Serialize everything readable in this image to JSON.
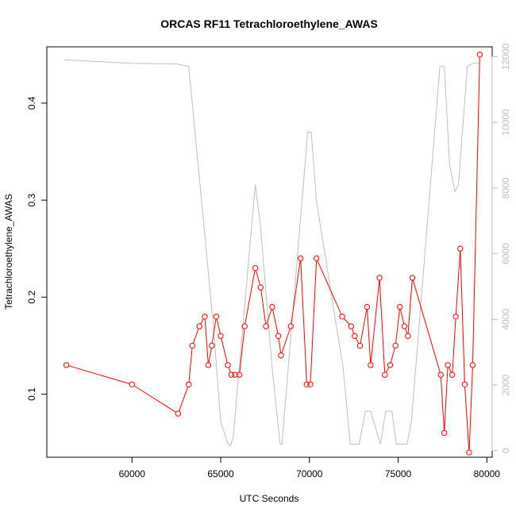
{
  "chart_data": {
    "type": "line",
    "title": "ORCAS RF11 Tetrachloroethylene_AWAS",
    "xlabel": "UTC Seconds",
    "ylabel": "Tetrachloroethylene_AWAS",
    "xlim": [
      55200,
      80300
    ],
    "ylim": [
      0.035,
      0.458
    ],
    "y2lim": [
      -200,
      12300
    ],
    "x_ticks": [
      60000,
      65000,
      70000,
      75000,
      80000
    ],
    "x_tick_labels": [
      "60000",
      "65000",
      "70000",
      "75000",
      "80000"
    ],
    "y_ticks": [
      0.1,
      0.2,
      0.3,
      0.4
    ],
    "y_tick_labels": [
      "0.1",
      "0.2",
      "0.3",
      "0.4"
    ],
    "y2_ticks": [
      0,
      2000,
      4000,
      6000,
      8000,
      10000,
      12000
    ],
    "y2_tick_labels": [
      "0",
      "2000",
      "4000",
      "6000",
      "8000",
      "10000",
      "12000"
    ],
    "grid": false,
    "colors": {
      "series": "#ff0000",
      "secondary": "#bebebe",
      "axis": "#000000"
    },
    "series": [
      {
        "axis": "left",
        "style": "line+markers",
        "x": [
          56300,
          60000,
          62600,
          63200,
          63400,
          63800,
          64100,
          64300,
          64500,
          64750,
          65000,
          65400,
          65600,
          65800,
          66050,
          66350,
          66950,
          67250,
          67550,
          67900,
          68250,
          68400,
          68950,
          69500,
          69850,
          70050,
          70400,
          71850,
          72350,
          72550,
          72850,
          73250,
          73450,
          73950,
          74250,
          74550,
          74850,
          75100,
          75350,
          75550,
          75800,
          77400,
          77600,
          77800,
          78050,
          78250,
          78500,
          78750,
          79000,
          79200,
          79600
        ],
        "y": [
          0.13,
          0.11,
          0.08,
          0.11,
          0.15,
          0.17,
          0.18,
          0.13,
          0.15,
          0.18,
          0.16,
          0.13,
          0.12,
          0.12,
          0.12,
          0.17,
          0.23,
          0.21,
          0.17,
          0.19,
          0.16,
          0.14,
          0.17,
          0.24,
          0.11,
          0.11,
          0.24,
          0.18,
          0.17,
          0.16,
          0.15,
          0.19,
          0.13,
          0.22,
          0.12,
          0.13,
          0.15,
          0.19,
          0.17,
          0.16,
          0.22,
          0.12,
          0.06,
          0.13,
          0.12,
          0.18,
          0.25,
          0.11,
          0.04,
          0.13,
          0.45
        ]
      },
      {
        "axis": "right",
        "style": "line",
        "x": [
          56200,
          60000,
          62500,
          63200,
          64100,
          64600,
          65000,
          65400,
          65550,
          65700,
          66950,
          67250,
          67900,
          68350,
          68450,
          69900,
          70100,
          70400,
          71900,
          72300,
          72800,
          73150,
          73450,
          74000,
          74300,
          74650,
          74900,
          75500,
          75750,
          77350,
          77600,
          77900,
          78200,
          78400,
          78900,
          79200,
          79600
        ],
        "y": [
          11900,
          11800,
          11780,
          11700,
          6600,
          3700,
          900,
          200,
          150,
          400,
          8100,
          6800,
          2500,
          200,
          200,
          9700,
          9700,
          7600,
          2500,
          200,
          200,
          1200,
          1200,
          200,
          1200,
          1200,
          200,
          200,
          900,
          11700,
          11700,
          8700,
          7900,
          8100,
          11700,
          11800,
          11800
        ]
      }
    ]
  }
}
